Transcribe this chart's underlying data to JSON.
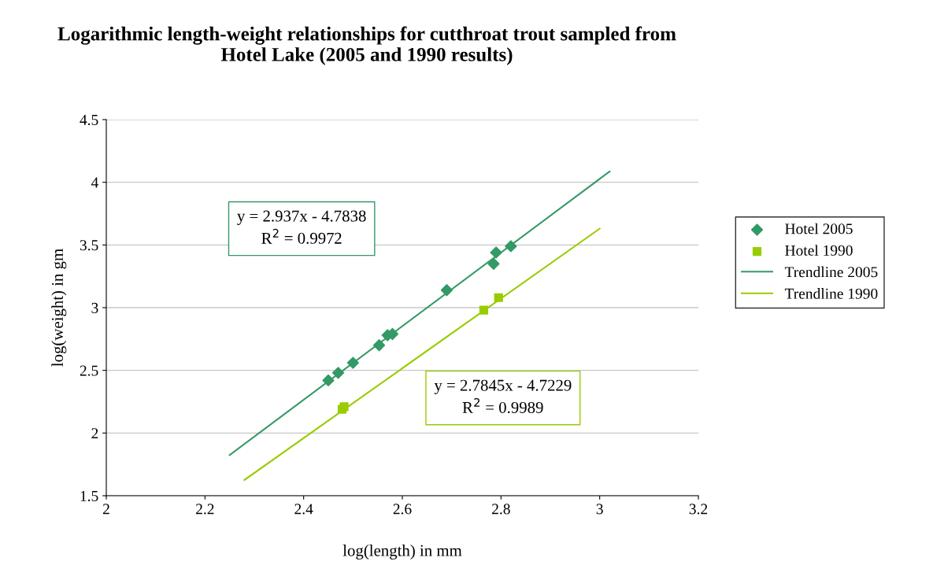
{
  "chart_data": {
    "type": "scatter",
    "title": "Logarithmic length-weight relationships for cutthroat trout sampled from\nHotel Lake (2005 and 1990 results)",
    "xlabel": "log(length) in mm",
    "ylabel": "log(weight) in gm",
    "xlim": [
      2,
      3.2
    ],
    "xticks": [
      2,
      2.2,
      2.4,
      2.6,
      2.8,
      3,
      3.2
    ],
    "ylim": [
      1.5,
      4.5
    ],
    "yticks": [
      1.5,
      2,
      2.5,
      3,
      3.5,
      4,
      4.5
    ],
    "grid": "y",
    "legend": "right",
    "series": [
      {
        "name": "Hotel 2005",
        "marker": "diamond",
        "color": "#339966",
        "x": [
          2.45,
          2.47,
          2.5,
          2.553,
          2.57,
          2.58,
          2.69,
          2.785,
          2.79,
          2.82
        ],
        "values": [
          2.42,
          2.48,
          2.56,
          2.7,
          2.78,
          2.79,
          3.14,
          3.35,
          3.44,
          3.49
        ]
      },
      {
        "name": "Hotel 1990",
        "marker": "square",
        "color": "#99cc00",
        "x": [
          2.478,
          2.482,
          2.765,
          2.795
        ],
        "values": [
          2.19,
          2.21,
          2.98,
          3.08
        ]
      },
      {
        "name": "Trendline 2005",
        "type": "line",
        "line_style": "solid",
        "color": "#339966",
        "x": [
          2.25,
          3.02
        ],
        "values": [
          1.825,
          4.086
        ]
      },
      {
        "name": "Trendline 1990",
        "type": "line",
        "line_style": "solid",
        "color": "#99cc00",
        "x": [
          2.28,
          3.0
        ],
        "values": [
          1.626,
          3.63
        ]
      }
    ],
    "annotations": [
      "y = 2.937x - 4.7838\nR$^{2}$ = 0.9972",
      "y = 2.7845x - 4.7229\nR$^{2}$ = 0.9989"
    ]
  }
}
